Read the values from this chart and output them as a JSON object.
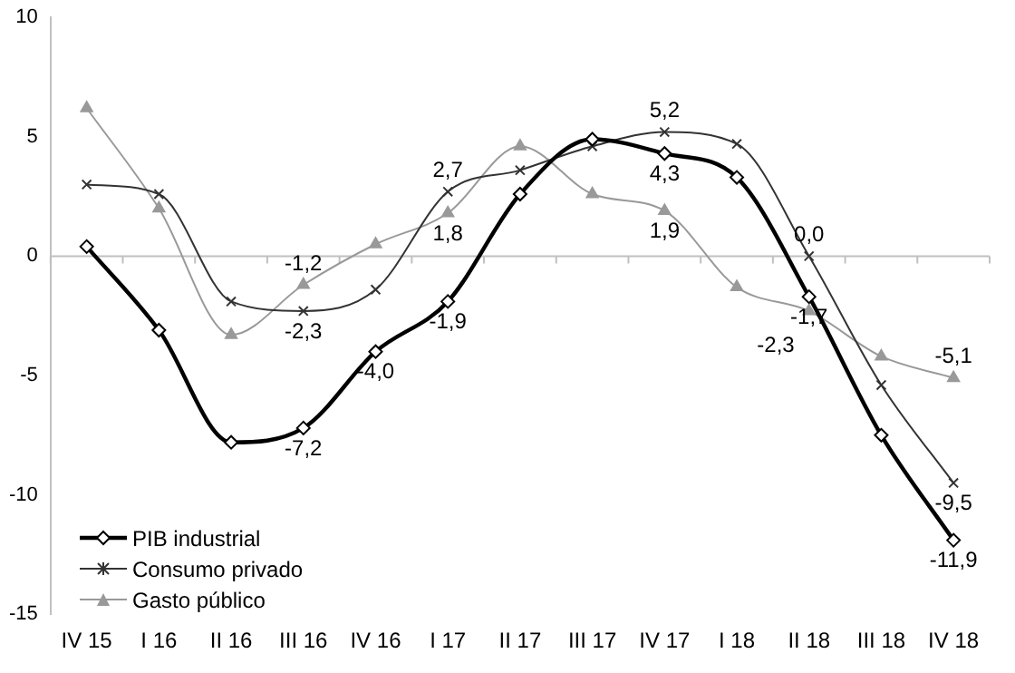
{
  "chart_data": {
    "type": "line",
    "categories": [
      "IV 15",
      "I 16",
      "II 16",
      "III 16",
      "IV 16",
      "I 17",
      "II 17",
      "III 17",
      "IV 17",
      "I 18",
      "II 18",
      "III 18",
      "IV 18"
    ],
    "series": [
      {
        "name": "PIB industrial",
        "color": "#000000",
        "marker": "diamond",
        "values": [
          0.4,
          -3.1,
          -7.8,
          -7.2,
          -4.0,
          -1.9,
          2.6,
          4.9,
          4.3,
          3.3,
          -1.7,
          -7.5,
          -11.9
        ],
        "value_labels": [
          null,
          null,
          null,
          "-7,2",
          "-4,0",
          "-1,9",
          null,
          null,
          "4,3",
          null,
          "-1,7",
          null,
          "-11,9"
        ]
      },
      {
        "name": "Consumo privado",
        "color": "#333333",
        "marker": "cross",
        "values": [
          3.0,
          2.6,
          -1.9,
          -2.3,
          -1.4,
          2.7,
          3.6,
          4.6,
          5.2,
          4.7,
          0.0,
          -5.4,
          -9.5
        ],
        "value_labels": [
          null,
          null,
          null,
          "-2,3",
          null,
          "2,7",
          null,
          null,
          "5,2",
          null,
          "0,0",
          null,
          "-9,5"
        ]
      },
      {
        "name": "Gasto público",
        "color": "#999999",
        "marker": "triangle",
        "values": [
          6.2,
          2.0,
          -3.3,
          -1.2,
          0.5,
          1.8,
          4.6,
          2.6,
          1.9,
          -1.3,
          -2.3,
          -4.2,
          -5.1
        ],
        "value_labels": [
          null,
          null,
          null,
          "-1,2",
          null,
          "1,8",
          null,
          null,
          "1,9",
          null,
          "-2,3",
          null,
          "-5,1"
        ]
      }
    ],
    "ylim": [
      -15,
      10
    ],
    "yticks": [
      -15,
      -10,
      -5,
      0,
      5,
      10
    ],
    "grid": false,
    "legend": "bottom left",
    "ref_lines": [
      {
        "axis": "y",
        "value": 0,
        "color": "#c0c0c0"
      }
    ]
  }
}
